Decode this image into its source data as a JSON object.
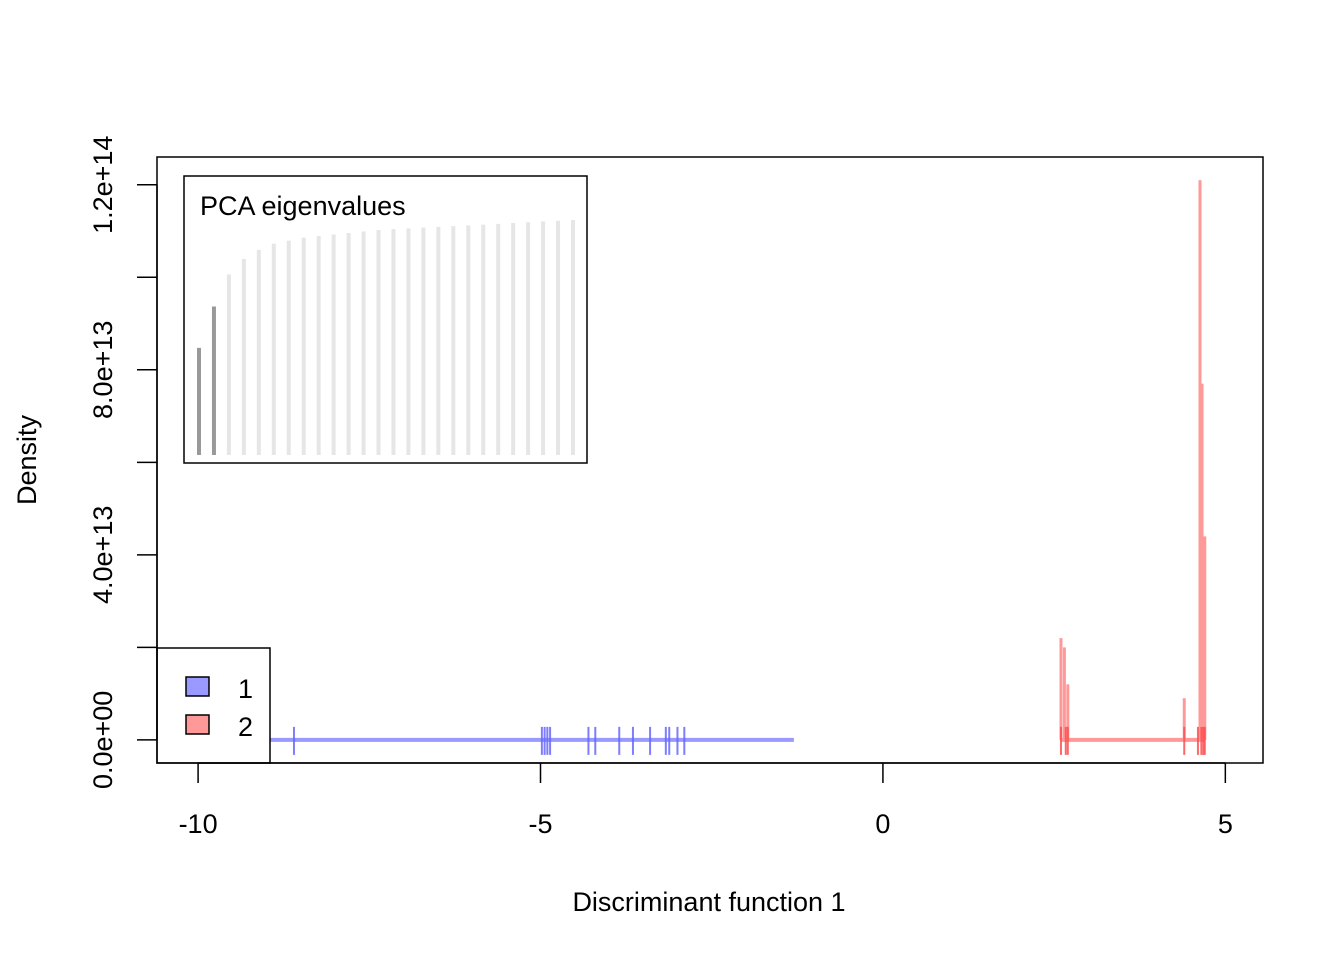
{
  "chart_data": {
    "type": "area",
    "xlabel": "Discriminant function 1",
    "ylabel": "Density",
    "xlim": [
      -10.6,
      5.55
    ],
    "ylim": [
      -5000000000000.0,
      126000000000000.0
    ],
    "x_ticks": [
      -10,
      -5,
      0,
      5
    ],
    "x_tick_labels": [
      "-10",
      "-5",
      "0",
      "5"
    ],
    "y_ticks": [
      0,
      20000000000000.0,
      40000000000000.0,
      60000000000000.0,
      80000000000000.0,
      100000000000000.0,
      120000000000000.0
    ],
    "y_tick_labels": [
      "0.0e+00",
      "",
      "4.0e+13",
      "",
      "8.0e+13",
      "",
      "1.2e+14"
    ],
    "grid": false,
    "legend": {
      "placement": "bottom-left",
      "entries": [
        {
          "label": "1",
          "color": "#9999ff"
        },
        {
          "label": "2",
          "color": "#ff9999"
        }
      ]
    },
    "series": [
      {
        "name": "1",
        "color": "#9999ff",
        "rug_color": "#6666ff",
        "density_range": [
          -10.2,
          -1.3
        ],
        "peaks": [],
        "rug": [
          -8.6,
          -4.98,
          -4.94,
          -4.9,
          -4.86,
          -4.3,
          -4.2,
          -3.85,
          -3.65,
          -3.4,
          -3.17,
          -3.12,
          -3.0,
          -2.9
        ]
      },
      {
        "name": "2",
        "color": "#ff9999",
        "rug_color": "#ff4d4d",
        "density_range": [
          2.6,
          4.7
        ],
        "peaks": [
          {
            "x": 2.6,
            "y": 22000000000000.0
          },
          {
            "x": 2.65,
            "y": 20000000000000.0
          },
          {
            "x": 2.7,
            "y": 12000000000000.0
          },
          {
            "x": 4.4,
            "y": 9000000000000.0
          },
          {
            "x": 4.63,
            "y": 121000000000000.0
          },
          {
            "x": 4.66,
            "y": 77000000000000.0
          },
          {
            "x": 4.7,
            "y": 44000000000000.0
          }
        ],
        "rug": [
          2.6,
          2.67,
          2.7,
          4.4,
          4.6,
          4.65,
          4.68,
          4.7
        ]
      }
    ],
    "inset": {
      "title": "PCA eigenvalues",
      "placement": "top-left",
      "bar_count": 26,
      "retained": 2,
      "retained_color": "#999999",
      "other_color": "#e6e6e6",
      "values": [
        0.7,
        0.97,
        1.18,
        1.28,
        1.34,
        1.38,
        1.4,
        1.42,
        1.43,
        1.44,
        1.45,
        1.46,
        1.47,
        1.475,
        1.48,
        1.485,
        1.49,
        1.495,
        1.5,
        1.505,
        1.51,
        1.515,
        1.52,
        1.525,
        1.53,
        1.535
      ]
    }
  }
}
